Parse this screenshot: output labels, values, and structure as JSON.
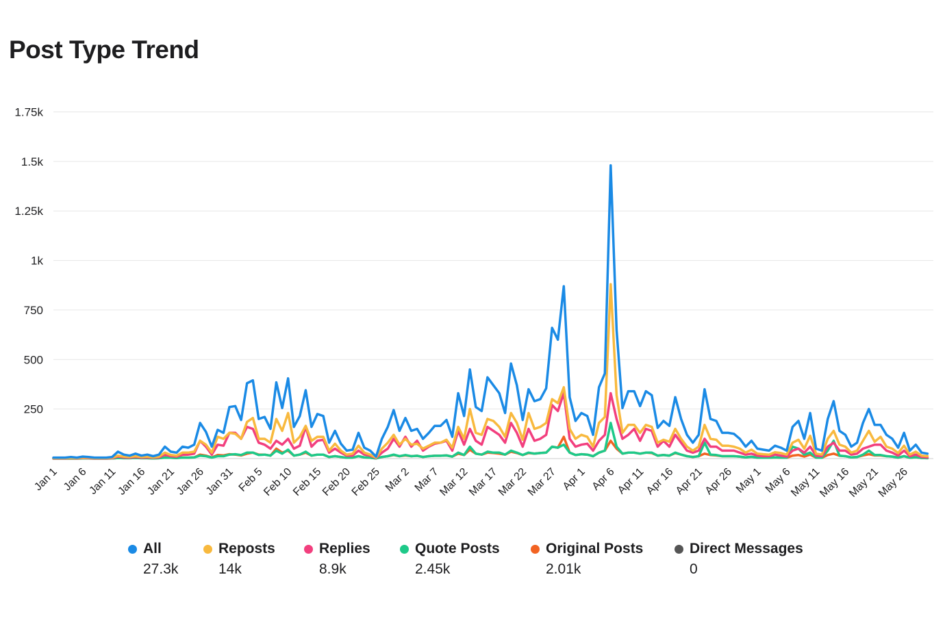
{
  "title": "Post Type Trend",
  "chart_data": {
    "type": "line",
    "title": "Post Type Trend",
    "xlabel": "",
    "ylabel": "",
    "ylim": [
      0,
      1750
    ],
    "yticks": [
      250,
      500,
      750,
      1000,
      1250,
      1500,
      1750
    ],
    "ytick_labels": [
      "250",
      "500",
      "750",
      "1k",
      "1.25k",
      "1.5k",
      "1.75k"
    ],
    "x_start": "Jan 1",
    "xtick_labels": [
      "Jan 1",
      "Jan 6",
      "Jan 11",
      "Jan 16",
      "Jan 21",
      "Jan 26",
      "Jan 31",
      "Feb 5",
      "Feb 10",
      "Feb 15",
      "Feb 20",
      "Feb 25",
      "Mar 2",
      "Mar 7",
      "Mar 12",
      "Mar 17",
      "Mar 22",
      "Mar 27",
      "Apr 1",
      "Apr 6",
      "Apr 11",
      "Apr 16",
      "Apr 21",
      "Apr 26",
      "May 1",
      "May 6",
      "May 11",
      "May 16",
      "May 21",
      "May 26"
    ],
    "grid": true,
    "legend_position": "bottom",
    "series": [
      {
        "name": "All",
        "total": "27.3k",
        "color": "#1a8ae5",
        "values": [
          5,
          5,
          5,
          8,
          5,
          10,
          8,
          5,
          5,
          5,
          8,
          35,
          20,
          15,
          25,
          15,
          20,
          12,
          20,
          60,
          35,
          30,
          60,
          55,
          70,
          180,
          135,
          60,
          145,
          130,
          260,
          265,
          195,
          380,
          395,
          200,
          210,
          150,
          385,
          255,
          405,
          160,
          215,
          345,
          160,
          225,
          215,
          80,
          140,
          75,
          40,
          45,
          130,
          55,
          40,
          10,
          100,
          160,
          245,
          140,
          205,
          140,
          150,
          100,
          130,
          165,
          165,
          195,
          110,
          330,
          215,
          450,
          260,
          240,
          410,
          370,
          330,
          230,
          480,
          370,
          195,
          350,
          290,
          300,
          355,
          660,
          600,
          870,
          310,
          190,
          230,
          215,
          120,
          360,
          430,
          1480,
          650,
          255,
          340,
          340,
          265,
          340,
          320,
          155,
          190,
          165,
          310,
          200,
          120,
          80,
          120,
          350,
          200,
          190,
          130,
          130,
          125,
          100,
          60,
          90,
          50,
          45,
          40,
          65,
          55,
          40,
          160,
          190,
          100,
          230,
          50,
          40,
          200,
          290,
          140,
          120,
          60,
          80,
          180,
          250,
          170,
          170,
          120,
          100,
          55,
          130,
          40,
          70,
          30,
          25
        ]
      },
      {
        "name": "Reposts",
        "total": "14k",
        "color": "#f8b93e",
        "values": [
          2,
          2,
          2,
          3,
          2,
          5,
          4,
          2,
          2,
          2,
          4,
          15,
          10,
          8,
          12,
          8,
          10,
          6,
          10,
          30,
          18,
          15,
          30,
          30,
          35,
          90,
          70,
          30,
          110,
          100,
          130,
          125,
          100,
          185,
          205,
          100,
          100,
          80,
          200,
          140,
          230,
          80,
          110,
          165,
          90,
          110,
          110,
          40,
          75,
          40,
          20,
          25,
          65,
          30,
          20,
          5,
          50,
          80,
          120,
          70,
          100,
          70,
          75,
          50,
          65,
          80,
          80,
          95,
          55,
          160,
          100,
          250,
          130,
          120,
          200,
          190,
          160,
          110,
          230,
          180,
          95,
          230,
          150,
          160,
          180,
          300,
          280,
          360,
          150,
          100,
          120,
          110,
          60,
          180,
          210,
          880,
          320,
          130,
          170,
          170,
          130,
          170,
          160,
          80,
          95,
          85,
          150,
          100,
          60,
          40,
          60,
          170,
          100,
          95,
          65,
          65,
          60,
          50,
          30,
          45,
          25,
          22,
          20,
          32,
          28,
          20,
          80,
          95,
          50,
          115,
          25,
          20,
          100,
          140,
          70,
          60,
          30,
          40,
          90,
          140,
          85,
          110,
          60,
          50,
          28,
          65,
          20,
          35,
          15,
          12
        ]
      },
      {
        "name": "Replies",
        "total": "8.9k",
        "color": "#f23f7e",
        "values": [
          1,
          1,
          1,
          2,
          1,
          3,
          2,
          1,
          1,
          1,
          2,
          10,
          6,
          5,
          8,
          5,
          6,
          4,
          6,
          20,
          12,
          10,
          20,
          20,
          25,
          90,
          60,
          20,
          70,
          65,
          130,
          130,
          100,
          160,
          150,
          80,
          70,
          50,
          90,
          70,
          100,
          50,
          65,
          160,
          60,
          90,
          95,
          30,
          50,
          30,
          15,
          15,
          40,
          20,
          15,
          3,
          30,
          50,
          100,
          60,
          110,
          60,
          90,
          40,
          60,
          75,
          80,
          90,
          40,
          140,
          70,
          150,
          90,
          70,
          160,
          140,
          120,
          80,
          180,
          130,
          60,
          150,
          90,
          100,
          120,
          270,
          240,
          330,
          100,
          60,
          70,
          75,
          40,
          90,
          120,
          330,
          200,
          100,
          120,
          150,
          90,
          150,
          140,
          60,
          90,
          60,
          120,
          80,
          40,
          30,
          40,
          100,
          60,
          60,
          40,
          40,
          40,
          30,
          20,
          25,
          15,
          12,
          12,
          20,
          15,
          10,
          40,
          50,
          30,
          60,
          15,
          12,
          60,
          80,
          40,
          40,
          20,
          25,
          50,
          60,
          70,
          70,
          40,
          30,
          15,
          40,
          12,
          20,
          8,
          6
        ]
      },
      {
        "name": "Quote Posts",
        "total": "2.45k",
        "color": "#1ec989",
        "values": [
          0,
          0,
          0,
          0,
          0,
          1,
          1,
          0,
          0,
          0,
          1,
          3,
          2,
          2,
          3,
          2,
          2,
          1,
          2,
          5,
          4,
          3,
          5,
          5,
          6,
          15,
          12,
          5,
          12,
          12,
          20,
          22,
          18,
          30,
          30,
          18,
          20,
          15,
          40,
          25,
          45,
          15,
          20,
          35,
          15,
          20,
          20,
          8,
          12,
          8,
          4,
          5,
          12,
          6,
          4,
          1,
          8,
          12,
          20,
          12,
          18,
          12,
          14,
          8,
          12,
          14,
          14,
          16,
          10,
          30,
          18,
          60,
          25,
          20,
          35,
          30,
          30,
          20,
          40,
          30,
          18,
          30,
          25,
          28,
          30,
          60,
          55,
          70,
          30,
          18,
          22,
          20,
          12,
          30,
          40,
          180,
          60,
          25,
          30,
          30,
          25,
          30,
          30,
          15,
          18,
          15,
          30,
          20,
          12,
          8,
          12,
          80,
          20,
          18,
          12,
          12,
          12,
          10,
          6,
          9,
          5,
          4,
          4,
          6,
          5,
          4,
          60,
          50,
          20,
          30,
          5,
          4,
          40,
          90,
          15,
          12,
          6,
          8,
          20,
          40,
          18,
          18,
          12,
          10,
          5,
          12,
          4,
          7,
          3,
          2
        ]
      },
      {
        "name": "Original Posts",
        "total": "2.01k",
        "color": "#f26322",
        "values": [
          0,
          0,
          0,
          0,
          0,
          1,
          1,
          0,
          0,
          0,
          1,
          3,
          2,
          2,
          3,
          2,
          2,
          1,
          2,
          6,
          4,
          3,
          6,
          5,
          6,
          20,
          15,
          6,
          18,
          16,
          22,
          20,
          16,
          25,
          30,
          20,
          20,
          15,
          50,
          30,
          40,
          15,
          20,
          30,
          15,
          20,
          20,
          8,
          12,
          8,
          4,
          5,
          12,
          6,
          4,
          1,
          8,
          12,
          18,
          12,
          16,
          12,
          14,
          8,
          12,
          14,
          14,
          16,
          10,
          25,
          18,
          45,
          25,
          20,
          30,
          28,
          25,
          20,
          35,
          28,
          18,
          28,
          25,
          28,
          30,
          60,
          55,
          110,
          30,
          18,
          22,
          20,
          12,
          30,
          40,
          90,
          50,
          25,
          30,
          30,
          25,
          30,
          28,
          15,
          18,
          15,
          28,
          20,
          12,
          8,
          12,
          25,
          18,
          16,
          12,
          12,
          12,
          10,
          6,
          9,
          5,
          4,
          4,
          6,
          5,
          4,
          15,
          18,
          10,
          20,
          5,
          4,
          18,
          25,
          14,
          12,
          6,
          8,
          16,
          22,
          16,
          16,
          12,
          10,
          5,
          12,
          4,
          7,
          3,
          2
        ]
      },
      {
        "name": "Direct Messages",
        "total": "0",
        "color": "#555555",
        "values": []
      }
    ]
  }
}
